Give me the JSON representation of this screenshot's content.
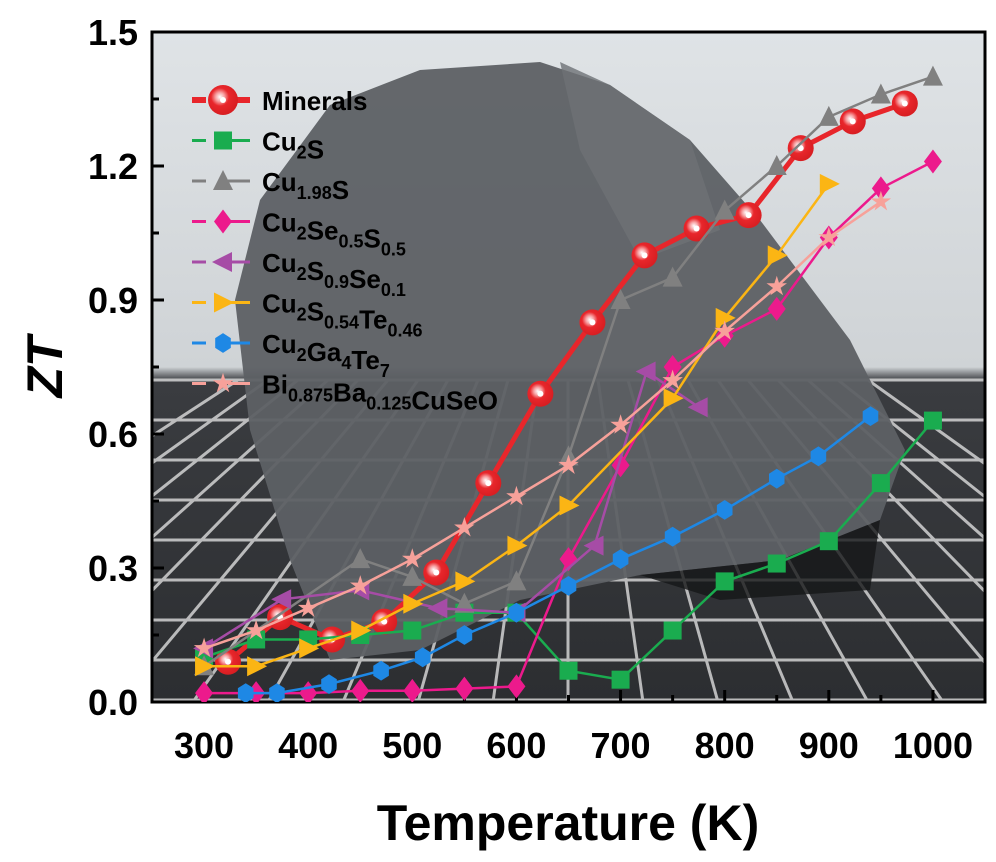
{
  "chart_data": {
    "type": "line",
    "title": "",
    "xlabel": "Temperature (K)",
    "ylabel": "ZT",
    "xlim": [
      250,
      1050
    ],
    "ylim": [
      0,
      1.5
    ],
    "xticks": [
      300,
      400,
      500,
      600,
      700,
      800,
      900,
      1000
    ],
    "yticks": [
      "0.0",
      "0.3",
      "0.6",
      "0.9",
      "1.2",
      "1.5"
    ],
    "ytick_values": [
      0,
      0.3,
      0.6,
      0.9,
      1.2,
      1.5
    ],
    "grid": false,
    "legend_placement": "top-left",
    "background": "photograph of a dark grey mineral rock on a grid mat",
    "series": [
      {
        "name": "Minerals",
        "label_parts": [
          {
            "t": "Minerals"
          }
        ],
        "color": "#e8262b",
        "marker": "circle-highlight",
        "x": [
          323,
          373,
          423,
          473,
          523,
          573,
          623,
          673,
          723,
          773,
          823,
          873,
          923,
          973
        ],
        "y": [
          0.09,
          0.19,
          0.14,
          0.18,
          0.29,
          0.49,
          0.69,
          0.85,
          1.0,
          1.06,
          1.09,
          1.24,
          1.3,
          1.34
        ]
      },
      {
        "name": "Cu2S",
        "label_parts": [
          {
            "t": "Cu"
          },
          {
            "t": "2",
            "sub": true
          },
          {
            "t": "S"
          }
        ],
        "color": "#1aac4f",
        "marker": "square",
        "x": [
          300,
          350,
          400,
          450,
          500,
          550,
          600,
          650,
          700,
          750,
          800,
          850,
          900,
          950,
          1000
        ],
        "y": [
          0.1,
          0.14,
          0.14,
          0.15,
          0.16,
          0.2,
          0.2,
          0.07,
          0.05,
          0.16,
          0.27,
          0.31,
          0.36,
          0.49,
          0.63
        ]
      },
      {
        "name": "Cu1.98S",
        "label_parts": [
          {
            "t": "Cu"
          },
          {
            "t": "1.98",
            "sub": true
          },
          {
            "t": "S"
          }
        ],
        "color": "#808080",
        "marker": "triangle-up",
        "x": [
          300,
          450,
          500,
          550,
          600,
          650,
          700,
          750,
          800,
          850,
          900,
          950,
          1000
        ],
        "y": [
          0.08,
          0.32,
          0.28,
          0.22,
          0.27,
          0.55,
          0.9,
          0.95,
          1.1,
          1.2,
          1.31,
          1.36,
          1.4
        ]
      },
      {
        "name": "Cu2Se0.5S0.5",
        "label_parts": [
          {
            "t": "Cu"
          },
          {
            "t": "2",
            "sub": true
          },
          {
            "t": "Se"
          },
          {
            "t": "0.5",
            "sub": true
          },
          {
            "t": "S"
          },
          {
            "t": "0.5",
            "sub": true
          }
        ],
        "color": "#ec1a8c",
        "marker": "diamond",
        "x": [
          300,
          350,
          400,
          450,
          500,
          550,
          600,
          650,
          700,
          750,
          800,
          850,
          900,
          950,
          1000
        ],
        "y": [
          0.02,
          0.02,
          0.02,
          0.025,
          0.025,
          0.03,
          0.035,
          0.32,
          0.53,
          0.75,
          0.82,
          0.88,
          1.04,
          1.15,
          1.21
        ]
      },
      {
        "name": "Cu2S0.9Se0.1",
        "label_parts": [
          {
            "t": "Cu"
          },
          {
            "t": "2",
            "sub": true
          },
          {
            "t": "S"
          },
          {
            "t": "0.9",
            "sub": true
          },
          {
            "t": "Se"
          },
          {
            "t": "0.1",
            "sub": true
          }
        ],
        "color": "#a64ca6",
        "marker": "triangle-left",
        "x": [
          300,
          375,
          450,
          525,
          600,
          675,
          725,
          775
        ],
        "y": [
          0.12,
          0.23,
          0.25,
          0.21,
          0.2,
          0.35,
          0.74,
          0.66
        ]
      },
      {
        "name": "Cu2S0.54Te0.46",
        "label_parts": [
          {
            "t": "Cu"
          },
          {
            "t": "2",
            "sub": true
          },
          {
            "t": "S"
          },
          {
            "t": "0.54",
            "sub": true
          },
          {
            "t": "Te"
          },
          {
            "t": "0.46",
            "sub": true
          }
        ],
        "color": "#fbb514",
        "marker": "triangle-right",
        "x": [
          300,
          350,
          400,
          450,
          500,
          550,
          600,
          650,
          750,
          800,
          850,
          900
        ],
        "y": [
          0.08,
          0.08,
          0.12,
          0.16,
          0.22,
          0.27,
          0.35,
          0.44,
          0.68,
          0.86,
          1.0,
          1.16
        ]
      },
      {
        "name": "Cu2Ga4Te7",
        "label_parts": [
          {
            "t": "Cu"
          },
          {
            "t": "2",
            "sub": true
          },
          {
            "t": "Ga"
          },
          {
            "t": "4",
            "sub": true
          },
          {
            "t": "Te"
          },
          {
            "t": "7",
            "sub": true
          }
        ],
        "color": "#1e88e5",
        "marker": "hexagon",
        "x": [
          340,
          370,
          420,
          470,
          510,
          550,
          600,
          650,
          700,
          750,
          800,
          850,
          890,
          940
        ],
        "y": [
          0.02,
          0.02,
          0.04,
          0.07,
          0.1,
          0.15,
          0.2,
          0.26,
          0.32,
          0.37,
          0.43,
          0.5,
          0.55,
          0.64
        ]
      },
      {
        "name": "Bi0.875Ba0.125CuSeO",
        "label_parts": [
          {
            "t": "Bi"
          },
          {
            "t": "0.875",
            "sub": true
          },
          {
            "t": "Ba"
          },
          {
            "t": "0.125",
            "sub": true
          },
          {
            "t": "CuSeO"
          }
        ],
        "color": "#f7a19a",
        "marker": "star",
        "x": [
          300,
          350,
          400,
          450,
          500,
          550,
          600,
          650,
          700,
          750,
          800,
          850,
          900,
          950
        ],
        "y": [
          0.12,
          0.16,
          0.21,
          0.26,
          0.32,
          0.39,
          0.46,
          0.53,
          0.62,
          0.72,
          0.83,
          0.93,
          1.04,
          1.12
        ]
      }
    ]
  }
}
